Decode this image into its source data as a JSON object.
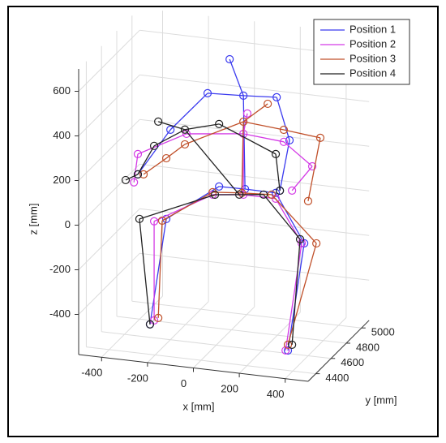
{
  "chart_data": {
    "type": "skeleton3d",
    "xlabel": "x [mm]",
    "ylabel": "y [mm]",
    "zlabel": "z [mm]",
    "xlim": [
      -500,
      500
    ],
    "ylim": [
      4300,
      5100
    ],
    "zlim": [
      -580,
      700
    ],
    "xticks": [
      -400,
      -200,
      0,
      200,
      400
    ],
    "yticks": [
      4400,
      4600,
      4800,
      5000
    ],
    "zticks": [
      -400,
      -200,
      0,
      200,
      400,
      600
    ],
    "grid": true,
    "legend": "upper right",
    "series": [
      {
        "name": "Position 1",
        "color": "#3b3bef",
        "x": [
          25,
          85,
          -71,
          -233,
          -375,
          230,
          286,
          244,
          92,
          -21,
          -251,
          -322,
          226,
          350,
          279
        ],
        "y": [
          4700,
          4700,
          4700,
          4700,
          4700,
          4700,
          4700,
          4700,
          4700,
          4700,
          4700,
          4700,
          4700,
          4700,
          4700
        ],
        "z": [
          670,
          514,
          506,
          323,
          106,
          524,
          338,
          107,
          96,
          94,
          -79,
          -560,
          95,
          -116,
          -605
        ]
      },
      {
        "name": "Position 2",
        "color": "#d43be6",
        "x": [
          102,
          85,
          -163,
          -375,
          -392,
          261,
          385,
          297,
          85,
          -49,
          -304,
          -304,
          226,
          339,
          269
        ],
        "y": [
          4700,
          4700,
          4700,
          4700,
          4700,
          4700,
          4700,
          4700,
          4700,
          4700,
          4700,
          4700,
          4700,
          4700,
          4700
        ],
        "z": [
          436,
          343,
          313,
          197,
          68,
          328,
          233,
          114,
          70,
          54,
          -96,
          -540,
          69,
          -117,
          -606
        ]
      },
      {
        "name": "Position 3",
        "color": "#c0502a",
        "x": [
          191,
          85,
          -170,
          -251,
          -350,
          261,
          420,
          367,
          78,
          -49,
          -269,
          -286,
          208,
          403,
          279
        ],
        "y": [
          4700,
          4700,
          4700,
          4700,
          4700,
          4700,
          4700,
          4700,
          4700,
          4700,
          4700,
          4700,
          4700,
          4700,
          4700
        ],
        "z": [
          490,
          397,
          265,
          193,
          109,
          382,
          365,
          75,
          77,
          65,
          -89,
          -527,
          85,
          -110,
          -579
        ]
      },
      {
        "name": "Position 4",
        "color": "#222222",
        "x": [
          -286,
          -170,
          -304,
          -375,
          -428,
          -21,
          226,
          244,
          67,
          -39,
          -368,
          -322,
          173,
          332,
          297
        ],
        "y": [
          4700,
          4700,
          4700,
          4700,
          4700,
          4700,
          4700,
          4700,
          4700,
          4700,
          4700,
          4700,
          4700,
          4700,
          4700
        ],
        "z": [
          353,
          331,
          242,
          106,
          74,
          374,
          269,
          107,
          68,
          55,
          -93,
          -560,
          81,
          -100,
          -577
        ]
      }
    ]
  }
}
